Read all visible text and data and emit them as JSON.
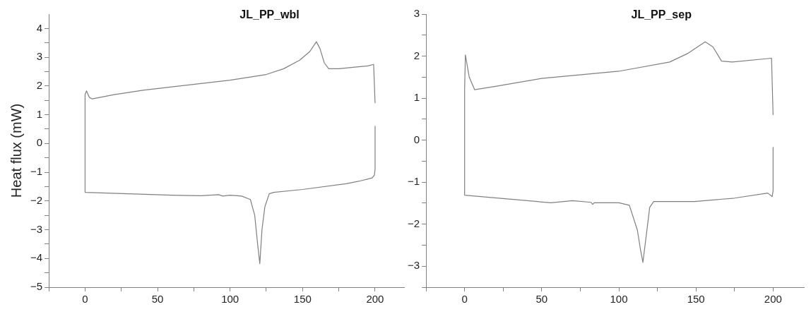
{
  "chart_data": [
    {
      "type": "line",
      "title": "JL_PP_wbl",
      "ylabel": "Heat flux (mW)",
      "x": [
        200,
        200,
        199.5,
        198,
        190,
        180,
        150,
        130,
        127,
        124,
        122,
        120.5,
        119,
        117,
        114,
        108,
        100,
        95,
        92,
        80,
        60,
        30,
        0,
        0,
        0,
        1,
        3,
        5,
        20,
        40,
        65,
        100,
        125,
        137,
        148,
        155,
        159.5,
        162,
        165,
        168,
        175,
        195,
        199,
        200
      ],
      "values": [
        0.6,
        -0.9,
        -1.1,
        -1.2,
        -1.3,
        -1.4,
        -1.6,
        -1.7,
        -1.75,
        -2.2,
        -3.0,
        -4.18,
        -3.5,
        -2.5,
        -1.95,
        -1.83,
        -1.8,
        -1.83,
        -1.78,
        -1.82,
        -1.8,
        -1.75,
        -1.7,
        0.9,
        1.7,
        1.83,
        1.6,
        1.55,
        1.7,
        1.85,
        2.0,
        2.2,
        2.4,
        2.6,
        2.9,
        3.2,
        3.54,
        3.3,
        2.8,
        2.6,
        2.6,
        2.7,
        2.75,
        1.4
      ],
      "color": "#808080",
      "xlim": [
        -25,
        220
      ],
      "ylim": [
        -5,
        4.5
      ],
      "xticks": [
        {
          "value": -25,
          "label": null
        },
        0,
        {
          "value": 25,
          "label": null
        },
        50,
        {
          "value": 75,
          "label": null
        },
        100,
        {
          "value": 125,
          "label": null
        },
        150,
        {
          "value": 175,
          "label": null
        },
        200
      ],
      "yticks": [
        -5,
        {
          "value": -4.5,
          "label": null
        },
        -4,
        {
          "value": -3.5,
          "label": null
        },
        -3,
        {
          "value": -2.5,
          "label": null
        },
        -2,
        {
          "value": -1.5,
          "label": null
        },
        -1,
        {
          "value": -0.5,
          "label": null
        },
        0,
        {
          "value": 0.5,
          "label": null
        },
        1,
        {
          "value": 1.5,
          "label": null
        },
        2,
        {
          "value": 2.5,
          "label": null
        },
        3,
        {
          "value": 3.5,
          "label": null
        },
        4
      ],
      "grid": false,
      "legend": false,
      "marker": "none",
      "line_style": "solid"
    },
    {
      "type": "line",
      "title": "JL_PP_sep",
      "x": [
        200,
        200,
        199.4,
        196.5,
        175,
        149,
        122.6,
        120,
        118,
        115.6,
        114,
        112,
        106.8,
        100,
        84,
        83,
        82,
        70,
        55.8,
        0,
        0,
        0.5,
        3,
        6.5,
        20,
        50,
        100,
        133,
        145,
        156,
        161,
        166.6,
        173.6,
        199,
        200
      ],
      "values": [
        -0.17,
        -1.2,
        -1.34,
        -1.26,
        -1.38,
        -1.46,
        -1.46,
        -1.6,
        -2.2,
        -2.91,
        -2.6,
        -2.14,
        -1.55,
        -1.49,
        -1.49,
        -1.53,
        -1.48,
        -1.44,
        -1.49,
        -1.31,
        1.2,
        2.03,
        1.5,
        1.2,
        1.28,
        1.47,
        1.64,
        1.86,
        2.07,
        2.34,
        2.22,
        1.88,
        1.86,
        1.95,
        0.6
      ],
      "color": "#808080",
      "xlim": [
        -25,
        220
      ],
      "ylim": [
        -3.5,
        3
      ],
      "xticks": [
        {
          "value": -25,
          "label": null
        },
        0,
        {
          "value": 25,
          "label": null
        },
        50,
        {
          "value": 75,
          "label": null
        },
        100,
        {
          "value": 125,
          "label": null
        },
        150,
        {
          "value": 175,
          "label": null
        },
        200
      ],
      "yticks": [
        {
          "value": -3.5,
          "label": null
        },
        -3,
        {
          "value": -2.5,
          "label": null
        },
        -2,
        {
          "value": -1.5,
          "label": null
        },
        -1,
        {
          "value": -0.5,
          "label": null
        },
        0,
        {
          "value": 0.5,
          "label": null
        },
        1,
        {
          "value": 1.5,
          "label": null
        },
        2,
        {
          "value": 2.5,
          "label": null
        },
        3
      ],
      "grid": false,
      "legend": false,
      "marker": "none",
      "line_style": "solid"
    }
  ]
}
